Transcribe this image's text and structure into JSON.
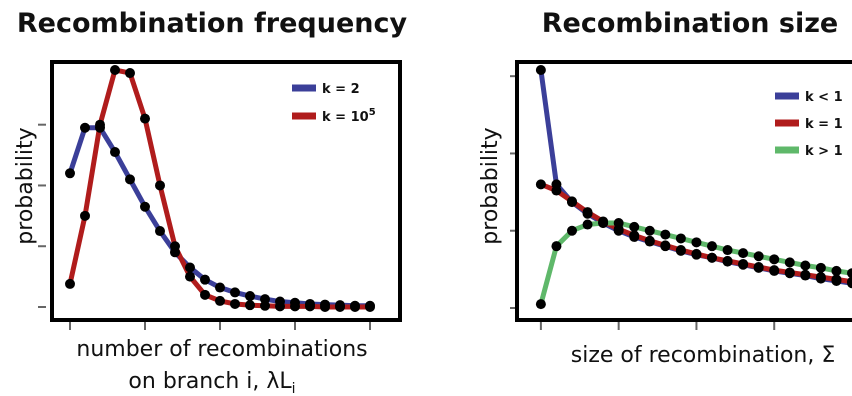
{
  "chart_data": [
    {
      "type": "line",
      "title": "Recombination frequency",
      "xlabel_line1": "number of recombinations",
      "xlabel_line2_prefix": "on branch i, λL",
      "xlabel_line2_sub": "i",
      "ylabel": "probability",
      "x": [
        0,
        1,
        2,
        3,
        4,
        5,
        6,
        7,
        8,
        9,
        10,
        11,
        12,
        13,
        14,
        15,
        16,
        17,
        18,
        19,
        20
      ],
      "xlim": [
        -0.2,
        20.8
      ],
      "ylim": [
        0,
        0.39
      ],
      "xticks": [
        0,
        5,
        10,
        15,
        20
      ],
      "yticks": [
        0,
        0.1,
        0.2,
        0.3,
        0.4
      ],
      "legend_position": "top-right",
      "series": [
        {
          "name": "k = 2",
          "color": "#3b3f99",
          "values": [
            0.22,
            0.295,
            0.295,
            0.255,
            0.21,
            0.165,
            0.125,
            0.09,
            0.065,
            0.045,
            0.032,
            0.024,
            0.018,
            0.013,
            0.009,
            0.007,
            0.005,
            0.004,
            0.003,
            0.002,
            0.002
          ]
        },
        {
          "name_prefix": "k = 10",
          "name_sup": "5",
          "color": "#b01c1c",
          "values": [
            0.038,
            0.15,
            0.3,
            0.39,
            0.385,
            0.31,
            0.2,
            0.1,
            0.05,
            0.02,
            0.01,
            0.005,
            0.003,
            0.002,
            0.001,
            0.001,
            0.001,
            0.0,
            0.0,
            0.0,
            0.0
          ]
        }
      ]
    },
    {
      "type": "line",
      "title": "Recombination size",
      "xlabel": "size of recombination, Σ",
      "ylabel": "probability",
      "x": [
        0,
        0.2,
        0.4,
        0.6,
        0.8,
        1.0,
        1.2,
        1.4,
        1.6,
        1.8,
        2.0,
        2.2,
        2.4,
        2.6,
        2.8,
        3.0,
        3.2,
        3.4,
        3.6,
        3.8,
        4.0
      ],
      "xlim": [
        -0.05,
        4.0
      ],
      "ylim": [
        0,
        3.08
      ],
      "xticks": [
        0,
        1,
        2,
        3
      ],
      "yticks": [
        0,
        1,
        2,
        3
      ],
      "legend_position": "top-right",
      "series": [
        {
          "name": "k < 1",
          "color": "#3b3f99",
          "values": [
            3.08,
            1.6,
            1.37,
            1.22,
            1.1,
            1.0,
            0.92,
            0.86,
            0.8,
            0.74,
            0.69,
            0.65,
            0.6,
            0.56,
            0.52,
            0.48,
            0.45,
            0.42,
            0.38,
            0.35,
            0.32
          ]
        },
        {
          "name": "k = 1",
          "color": "#b01c1c",
          "values": [
            1.6,
            1.52,
            1.38,
            1.24,
            1.12,
            1.02,
            0.94,
            0.87,
            0.81,
            0.75,
            0.7,
            0.65,
            0.61,
            0.57,
            0.53,
            0.49,
            0.46,
            0.43,
            0.4,
            0.37,
            0.34
          ]
        },
        {
          "name": "k > 1",
          "color": "#5fb86a",
          "values": [
            0.05,
            0.8,
            1.0,
            1.08,
            1.1,
            1.1,
            1.05,
            1.0,
            0.95,
            0.9,
            0.85,
            0.8,
            0.75,
            0.71,
            0.67,
            0.63,
            0.59,
            0.55,
            0.52,
            0.48,
            0.45
          ]
        }
      ]
    }
  ]
}
